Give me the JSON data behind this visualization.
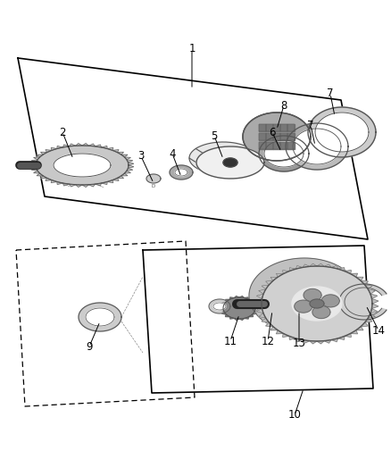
{
  "bg_color": "#ffffff",
  "lc": "#000000",
  "gd": "#555555",
  "gm": "#888888",
  "gl": "#bbbbbb",
  "fig_width": 4.38,
  "fig_height": 5.33,
  "dpi": 100
}
